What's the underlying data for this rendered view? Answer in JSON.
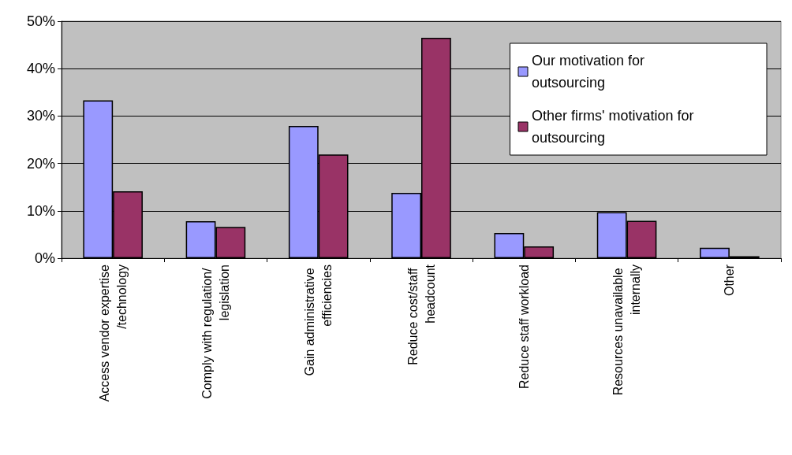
{
  "chart_data": {
    "type": "bar",
    "categories": [
      "Access vendor expertise/technology",
      "Comply with regulation/ legislation",
      "Gain administrative efficiencies",
      "Reduce cost/staff headcount",
      "Reduce staff workload",
      "Resources unavailable internally",
      "Other"
    ],
    "series": [
      {
        "name": "Our motivation for outsourcing",
        "color": "#9999ff",
        "values": [
          33.3,
          7.8,
          27.9,
          13.8,
          5.3,
          9.7,
          2.2
        ]
      },
      {
        "name": "Other firms' motivation for outsourcing",
        "color": "#993366",
        "values": [
          14.1,
          6.6,
          21.9,
          46.5,
          2.5,
          7.9,
          0.4
        ]
      }
    ],
    "ylim": [
      0,
      50
    ],
    "yticks": [
      {
        "value": 0,
        "label": "0%"
      },
      {
        "value": 10,
        "label": "10%"
      },
      {
        "value": 20,
        "label": "20%"
      },
      {
        "value": 30,
        "label": "30%"
      },
      {
        "value": 40,
        "label": "40%"
      },
      {
        "value": 50,
        "label": "50%"
      }
    ],
    "grid": "y",
    "legend": "top right"
  }
}
